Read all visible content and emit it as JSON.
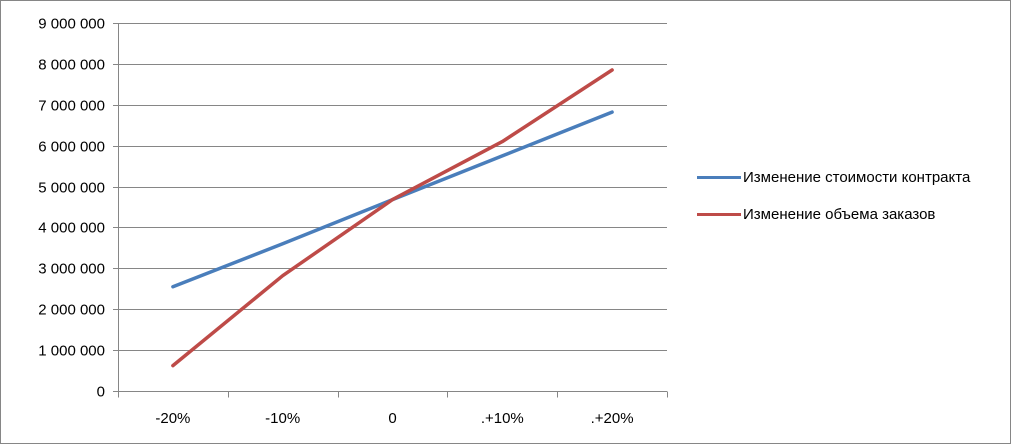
{
  "chart_data": {
    "type": "line",
    "title": "",
    "xlabel": "",
    "ylabel": "",
    "categories": [
      "-20%",
      "-10%",
      "0",
      ".+10%",
      ".+20%"
    ],
    "ylim": [
      0,
      9000000
    ],
    "yticks": [
      0,
      1000000,
      2000000,
      3000000,
      4000000,
      5000000,
      6000000,
      7000000,
      8000000,
      9000000
    ],
    "ytick_labels": [
      "0",
      "1 000 000",
      "2 000 000",
      "3 000 000",
      "4 000 000",
      "5 000 000",
      "6 000 000",
      "7 000 000",
      "8 000 000",
      "9 000 000"
    ],
    "grid": true,
    "legend_position": "right",
    "series": [
      {
        "name": "Изменение стоимости контракта",
        "color": "#4a7ebb",
        "values": [
          2550000,
          3600000,
          4680000,
          5750000,
          6820000
        ]
      },
      {
        "name": "Изменение объема заказов",
        "color": "#be4b48",
        "values": [
          620000,
          2820000,
          4680000,
          6100000,
          7850000
        ]
      }
    ]
  }
}
